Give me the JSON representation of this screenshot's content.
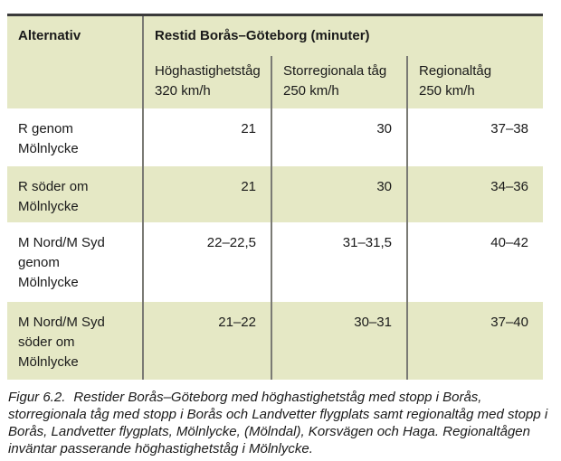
{
  "figure": {
    "table": {
      "corner_header": "Alternativ",
      "group_header": "Restid Borås–Göteborg (minuter)",
      "columns": [
        {
          "header": "Höghastighetståg\n320 km/h"
        },
        {
          "header": "Storregionala tåg\n250 km/h"
        },
        {
          "header": "Regionaltåg\n250 km/h"
        }
      ],
      "rows": [
        {
          "label": "R genom\nMölnlycke",
          "values": [
            "21",
            "30",
            "37–38"
          ]
        },
        {
          "label": "R söder om\nMölnlycke",
          "values": [
            "21",
            "30",
            "34–36"
          ]
        },
        {
          "label": "M Nord/M Syd\ngenom\nMölnlycke",
          "values": [
            "22–22,5",
            "31–31,5",
            "40–42"
          ]
        },
        {
          "label": "M Nord/M Syd\nsöder om\nMölnlycke",
          "values": [
            "21–22",
            "30–31",
            "37–40"
          ]
        }
      ]
    },
    "caption": {
      "label": "Figur 6.2.",
      "text": "Restider Borås–Göteborg med höghastighetståg med stopp i Borås, storregionala tåg med stopp i Borås och Landvetter flygplats samt regionaltåg med stopp i Borås, Landvetter flygplats, Mölnlycke, (Mölndal), Korsvägen och Haga. Regionaltågen inväntar passerande höghastighetståg i Mölnlycke."
    },
    "colors": {
      "row_highlight": "#e5e8c5",
      "top_border": "#3a3a3a",
      "column_divider": "#7a7a74",
      "text": "#1a1a1a"
    }
  }
}
